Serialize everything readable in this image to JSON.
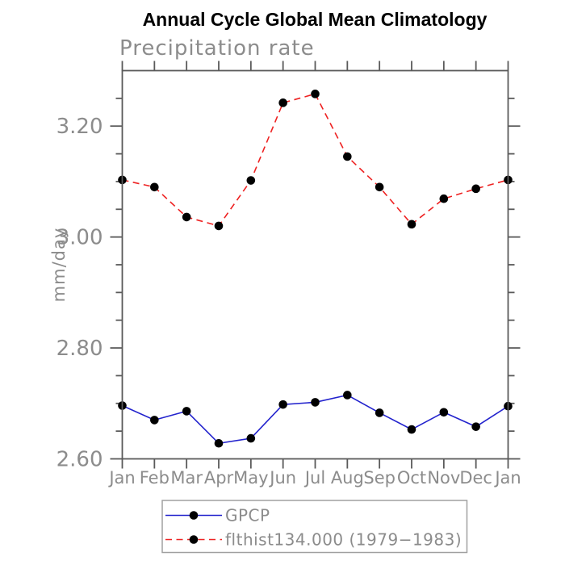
{
  "title": "Annual Cycle Global Mean Climatology",
  "chart_data": {
    "type": "line",
    "title": "Annual Cycle Global Mean Climatology",
    "subtitle": "Precipitation rate",
    "ylabel": "mm/day",
    "categories": [
      "Jan",
      "Feb",
      "Mar",
      "Apr",
      "May",
      "Jun",
      "Jul",
      "Aug",
      "Sep",
      "Oct",
      "Nov",
      "Dec",
      "Jan"
    ],
    "ylim": [
      2.6,
      3.3
    ],
    "y_major_ticks": [
      2.6,
      2.8,
      3.0,
      3.2
    ],
    "y_tick_labels": [
      "2.60",
      "2.80",
      "3.00",
      "3.20"
    ],
    "y_minor_step": 0.05,
    "grid": false,
    "legend_position": "bottom-center",
    "series": [
      {
        "name": "GPCP",
        "color": "#2323cd",
        "line_style": "solid",
        "marker": "black-dot",
        "values": [
          2.696,
          2.67,
          2.686,
          2.628,
          2.637,
          2.698,
          2.702,
          2.715,
          2.683,
          2.653,
          2.684,
          2.658,
          2.695
        ]
      },
      {
        "name": "flthist134.000 (1979−1983)",
        "color": "#ee2222",
        "line_style": "dashed",
        "marker": "black-dot",
        "values": [
          3.103,
          3.09,
          3.036,
          3.02,
          3.102,
          3.242,
          3.258,
          3.145,
          3.09,
          3.023,
          3.069,
          3.087,
          3.103
        ]
      }
    ]
  },
  "colors": {
    "axis": "#5a5a5a",
    "tick_label": "#8c8c8c",
    "marker": "#000000",
    "legend_border": "#a0a0a0",
    "background": "#ffffff",
    "title": "#000000"
  }
}
